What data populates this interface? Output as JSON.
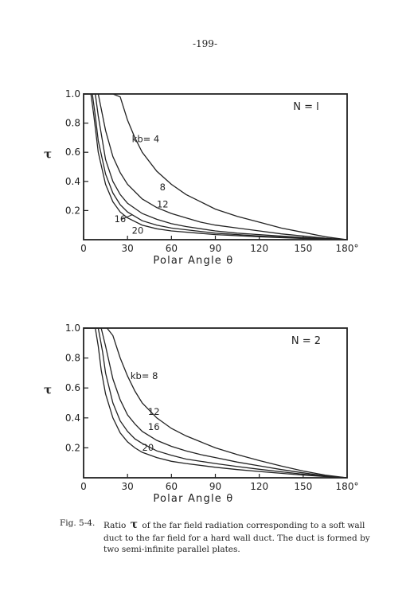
{
  "page": {
    "number": "-199-"
  },
  "chart_data": [
    {
      "type": "line",
      "annotation": "N = l",
      "ylabel": "τ",
      "xlabel": "Polar Angle  θ",
      "xlim": [
        0,
        180
      ],
      "ylim": [
        0,
        1.0
      ],
      "x_ticks": [
        "0",
        "30",
        "60",
        "90",
        "120",
        "150",
        "180°"
      ],
      "y_ticks": [
        "0.2",
        "0.4",
        "0.6",
        "0.8",
        "1.0"
      ],
      "series": [
        {
          "name": "kb= 4",
          "x": [
            0,
            20,
            25,
            30,
            35,
            40,
            50,
            60,
            70,
            80,
            90,
            105,
            120,
            135,
            150,
            165,
            180
          ],
          "y": [
            1.0,
            1.0,
            0.98,
            0.82,
            0.7,
            0.6,
            0.47,
            0.38,
            0.31,
            0.26,
            0.21,
            0.16,
            0.12,
            0.08,
            0.05,
            0.02,
            0
          ]
        },
        {
          "name": "8",
          "x": [
            0,
            10,
            15,
            20,
            25,
            30,
            40,
            50,
            60,
            70,
            80,
            90,
            105,
            120,
            135,
            150,
            165,
            180
          ],
          "y": [
            1.0,
            1.0,
            0.75,
            0.57,
            0.46,
            0.38,
            0.28,
            0.22,
            0.18,
            0.15,
            0.12,
            0.1,
            0.08,
            0.06,
            0.04,
            0.025,
            0.01,
            0
          ]
        },
        {
          "name": "12",
          "x": [
            0,
            8,
            10,
            15,
            20,
            25,
            30,
            40,
            50,
            60,
            70,
            90,
            105,
            120,
            150,
            180
          ],
          "y": [
            1.0,
            1.0,
            0.85,
            0.55,
            0.4,
            0.31,
            0.25,
            0.18,
            0.14,
            0.11,
            0.09,
            0.06,
            0.045,
            0.035,
            0.015,
            0
          ]
        },
        {
          "name": "16",
          "x": [
            0,
            6,
            8,
            10,
            15,
            20,
            25,
            30,
            40,
            50,
            60,
            90,
            120,
            150,
            180
          ],
          "y": [
            1.0,
            1.0,
            0.85,
            0.68,
            0.45,
            0.32,
            0.24,
            0.19,
            0.13,
            0.1,
            0.08,
            0.045,
            0.025,
            0.01,
            0
          ]
        },
        {
          "name": "20",
          "x": [
            0,
            5,
            7,
            10,
            15,
            20,
            25,
            30,
            40,
            50,
            60,
            90,
            120,
            150,
            180
          ],
          "y": [
            1.0,
            1.0,
            0.85,
            0.6,
            0.38,
            0.26,
            0.19,
            0.15,
            0.1,
            0.075,
            0.06,
            0.035,
            0.02,
            0.008,
            0
          ]
        }
      ]
    },
    {
      "type": "line",
      "annotation": "N = 2",
      "ylabel": "τ",
      "xlabel": "Polar Angle  θ",
      "xlim": [
        0,
        180
      ],
      "ylim": [
        0,
        1.0
      ],
      "x_ticks": [
        "0",
        "30",
        "60",
        "90",
        "120",
        "150",
        "180°"
      ],
      "y_ticks": [
        "0.2",
        "0.4",
        "0.6",
        "0.8",
        "1.0"
      ],
      "series": [
        {
          "name": "kb= 8",
          "x": [
            0,
            16,
            20,
            25,
            30,
            35,
            40,
            50,
            60,
            70,
            80,
            90,
            105,
            120,
            135,
            150,
            165,
            180
          ],
          "y": [
            1.0,
            1.0,
            0.95,
            0.8,
            0.68,
            0.58,
            0.5,
            0.4,
            0.33,
            0.28,
            0.24,
            0.2,
            0.155,
            0.115,
            0.078,
            0.045,
            0.018,
            0
          ]
        },
        {
          "name": "12",
          "x": [
            0,
            12,
            15,
            20,
            25,
            30,
            35,
            40,
            50,
            60,
            70,
            80,
            90,
            105,
            120,
            135,
            150,
            165,
            180
          ],
          "y": [
            1.0,
            1.0,
            0.88,
            0.66,
            0.52,
            0.42,
            0.36,
            0.31,
            0.25,
            0.21,
            0.18,
            0.155,
            0.135,
            0.105,
            0.08,
            0.055,
            0.033,
            0.013,
            0
          ]
        },
        {
          "name": "16",
          "x": [
            0,
            10,
            13,
            15,
            20,
            25,
            30,
            35,
            40,
            50,
            60,
            70,
            90,
            105,
            120,
            135,
            150,
            165,
            180
          ],
          "y": [
            1.0,
            1.0,
            0.84,
            0.7,
            0.5,
            0.38,
            0.31,
            0.26,
            0.23,
            0.18,
            0.15,
            0.125,
            0.095,
            0.075,
            0.057,
            0.04,
            0.024,
            0.01,
            0
          ]
        },
        {
          "name": "20",
          "x": [
            0,
            8,
            10,
            12,
            15,
            20,
            25,
            30,
            35,
            40,
            50,
            60,
            70,
            90,
            105,
            120,
            135,
            150,
            165,
            180
          ],
          "y": [
            1.0,
            1.0,
            0.88,
            0.72,
            0.56,
            0.4,
            0.3,
            0.24,
            0.2,
            0.17,
            0.135,
            0.11,
            0.095,
            0.07,
            0.055,
            0.042,
            0.03,
            0.018,
            0.008,
            0
          ]
        }
      ]
    }
  ],
  "caption": {
    "label": "Fig. 5-4.",
    "text_before": "Ratio",
    "symbol": "τ",
    "text_after": "of the far field radiation corresponding to a soft wall duct to the far field for a hard wall duct.  The duct is formed by two semi-infinite parallel plates."
  }
}
